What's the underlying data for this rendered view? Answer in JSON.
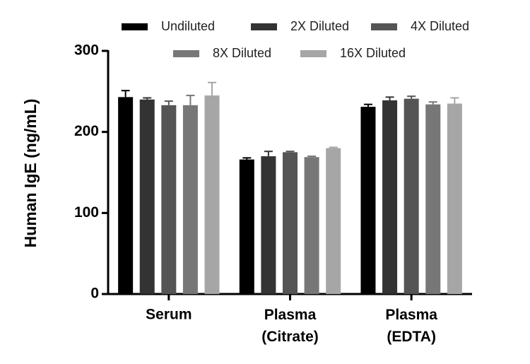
{
  "chart_data": {
    "type": "bar",
    "categories": [
      "Serum",
      "Plasma (Citrate)",
      "Plasma (EDTA)"
    ],
    "y_label": "Human IgE (ng/mL)",
    "ylim": [
      0,
      300
    ],
    "yticks": [
      0,
      100,
      200,
      300
    ],
    "series": [
      {
        "name": "Undiluted",
        "color": "#000000",
        "values": [
          243,
          166,
          231
        ],
        "errors": [
          8,
          2,
          3
        ]
      },
      {
        "name": "2X Diluted",
        "color": "#333333",
        "values": [
          240,
          170,
          239
        ],
        "errors": [
          2,
          6,
          4
        ]
      },
      {
        "name": "4X Diluted",
        "color": "#555555",
        "values": [
          233,
          175,
          241
        ],
        "errors": [
          5,
          1,
          3
        ]
      },
      {
        "name": "8X Diluted",
        "color": "#777777",
        "values": [
          233,
          169,
          234
        ],
        "errors": [
          12,
          1,
          3
        ]
      },
      {
        "name": "16X Diluted",
        "color": "#a6a6a6",
        "values": [
          245,
          180,
          235
        ],
        "errors": [
          16,
          1,
          7
        ]
      }
    ]
  }
}
